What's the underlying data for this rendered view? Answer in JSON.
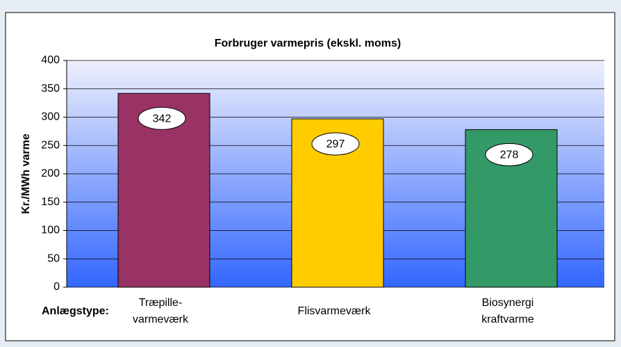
{
  "chart_data": {
    "type": "bar",
    "title": "Forbruger varmepris (ekskl. moms)",
    "y_label": "Kr./MWh varme",
    "x_label": "Anlægstype:",
    "categories": [
      [
        "Træpille-",
        "varmeværk"
      ],
      [
        "Flisvarmeværk"
      ],
      [
        "Biosynergi",
        "kraftvarme"
      ]
    ],
    "values": [
      342,
      297,
      278
    ],
    "colors": [
      "#993366",
      "#ffcc00",
      "#339966"
    ],
    "ylim": [
      0,
      400
    ],
    "yticks": [
      0,
      50,
      100,
      150,
      200,
      250,
      300,
      350,
      400
    ],
    "grid": true
  }
}
